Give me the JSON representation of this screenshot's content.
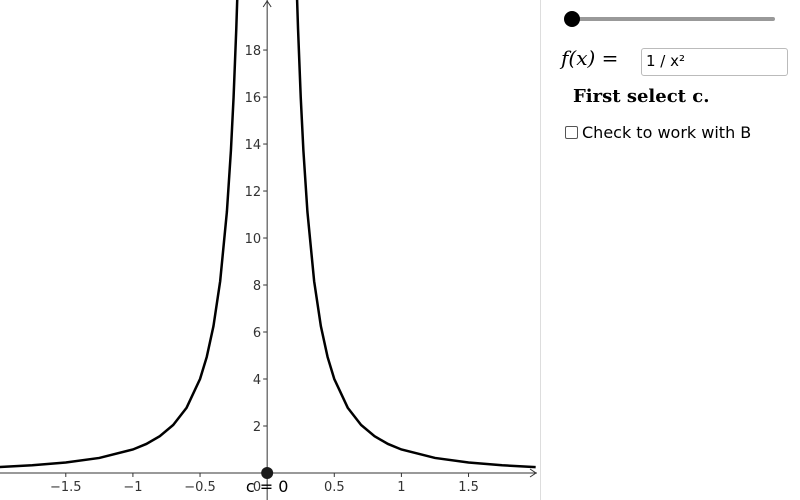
{
  "graph": {
    "xlim": [
      -1.99,
      2.01
    ],
    "ylim": [
      -1.15,
      20.13
    ],
    "xticks": [
      {
        "value": -1.5,
        "label": "−1.5"
      },
      {
        "value": -1,
        "label": "−1"
      },
      {
        "value": -0.5,
        "label": "−0.5"
      },
      0.5,
      1,
      1.5
    ],
    "origin_label": "0",
    "yticks": [
      2,
      4,
      6,
      8,
      10,
      12,
      14,
      16,
      18
    ],
    "curve": {
      "color": "#000000",
      "x": [
        -2,
        -1.75,
        -1.5,
        -1.25,
        -1,
        -0.9,
        -0.8,
        -0.7,
        -0.6,
        -0.5,
        -0.45,
        -0.4,
        -0.35,
        -0.3,
        -0.27,
        -0.25,
        -0.23,
        -0.22,
        null,
        0.22,
        0.23,
        0.25,
        0.27,
        0.3,
        0.35,
        0.4,
        0.45,
        0.5,
        0.6,
        0.7,
        0.8,
        0.9,
        1,
        1.25,
        1.5,
        1.75,
        2
      ],
      "y": [
        0.25,
        0.327,
        0.444,
        0.64,
        1,
        1.235,
        1.563,
        2.041,
        2.778,
        4,
        4.938,
        6.25,
        8.163,
        11.111,
        13.717,
        16,
        18.904,
        20.661,
        null,
        20.661,
        18.904,
        16,
        13.717,
        11.111,
        8.163,
        6.25,
        4.938,
        4,
        2.778,
        2.041,
        1.563,
        1.235,
        1,
        0.64,
        0.444,
        0.327,
        0.25
      ]
    },
    "point": {
      "label": "c = 0",
      "x": 0,
      "y": 0,
      "color": "#1a1a1a"
    }
  },
  "panel": {
    "function_label": "f(x) =",
    "function_input": "1 / x²",
    "instruction": "First select c.",
    "checkbox_label": "Check to work with B"
  }
}
